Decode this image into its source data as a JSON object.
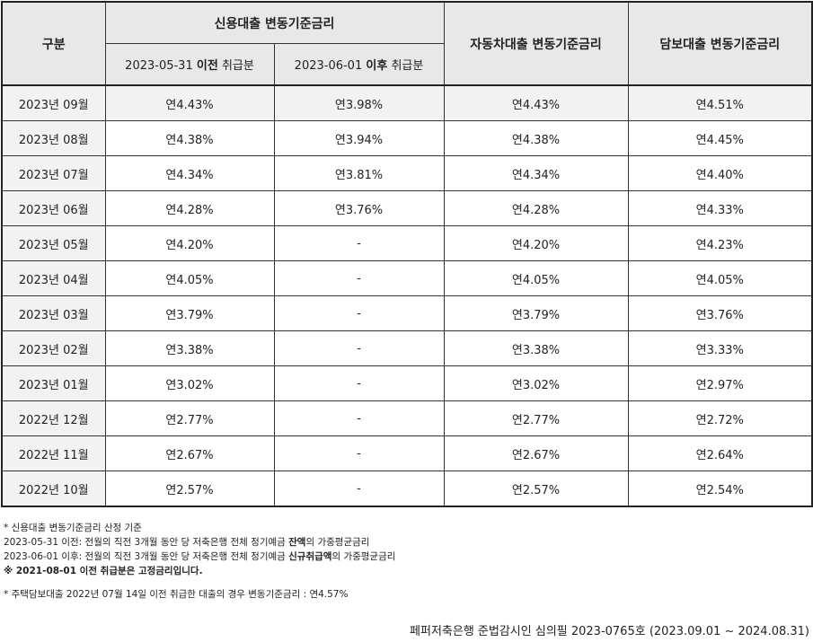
{
  "table": {
    "header": {
      "category": "구분",
      "credit_group": "신용대출 변동기준금리",
      "credit_before_date": "2023-05-31",
      "credit_before_kw": "이전",
      "credit_before_suffix": "취급분",
      "credit_after_date": "2023-06-01",
      "credit_after_kw": "이후",
      "credit_after_suffix": "취급분",
      "auto": "자동차대출 변동기준금리",
      "secured": "담보대출 변동기준금리"
    },
    "rows": [
      {
        "month": "2023년 09월",
        "credit_before": "연4.43%",
        "credit_after": "연3.98%",
        "auto": "연4.43%",
        "secured": "연4.51%"
      },
      {
        "month": "2023년 08월",
        "credit_before": "연4.38%",
        "credit_after": "연3.94%",
        "auto": "연4.38%",
        "secured": "연4.45%"
      },
      {
        "month": "2023년 07월",
        "credit_before": "연4.34%",
        "credit_after": "연3.81%",
        "auto": "연4.34%",
        "secured": "연4.40%"
      },
      {
        "month": "2023년 06월",
        "credit_before": "연4.28%",
        "credit_after": "연3.76%",
        "auto": "연4.28%",
        "secured": "연4.33%"
      },
      {
        "month": "2023년 05월",
        "credit_before": "연4.20%",
        "credit_after": "-",
        "auto": "연4.20%",
        "secured": "연4.23%"
      },
      {
        "month": "2023년 04월",
        "credit_before": "연4.05%",
        "credit_after": "-",
        "auto": "연4.05%",
        "secured": "연4.05%"
      },
      {
        "month": "2023년 03월",
        "credit_before": "연3.79%",
        "credit_after": "-",
        "auto": "연3.79%",
        "secured": "연3.76%"
      },
      {
        "month": "2023년 02월",
        "credit_before": "연3.38%",
        "credit_after": "-",
        "auto": "연3.38%",
        "secured": "연3.33%"
      },
      {
        "month": "2023년 01월",
        "credit_before": "연3.02%",
        "credit_after": "-",
        "auto": "연3.02%",
        "secured": "연2.97%"
      },
      {
        "month": "2022년 12월",
        "credit_before": "연2.77%",
        "credit_after": "-",
        "auto": "연2.77%",
        "secured": "연2.72%"
      },
      {
        "month": "2022년 11월",
        "credit_before": "연2.67%",
        "credit_after": "-",
        "auto": "연2.67%",
        "secured": "연2.64%"
      },
      {
        "month": "2022년 10월",
        "credit_before": "연2.57%",
        "credit_after": "-",
        "auto": "연2.57%",
        "secured": "연2.54%"
      }
    ]
  },
  "notes": {
    "line1": "* 신용대출 변동기준금리 산정 기준",
    "line2_prefix": "2023-05-31 이전: 전월의 직전 3개월 동안 당 저축은행 전체 정기예금 ",
    "line2_bold": "잔액",
    "line2_suffix": "의 가중평균금리",
    "line3_prefix": "2023-06-01 이후: 전월의 직전 3개월 동안 당 저축은행 전체 정기예금 ",
    "line3_bold": "신규취급액",
    "line3_suffix": "의 가중평균금리",
    "line4": "※ 2021-08-01 이전 취급분은 고정금리입니다.",
    "line5": "* 주택담보대출 2022년 07월 14일 이전 취급한 대출의 경우 변동기준금리 : 연4.57%"
  },
  "footer": "페퍼저축은행 준법감시인 심의필 2023-0765호 (2023.09.01 ~ 2024.08.31)"
}
